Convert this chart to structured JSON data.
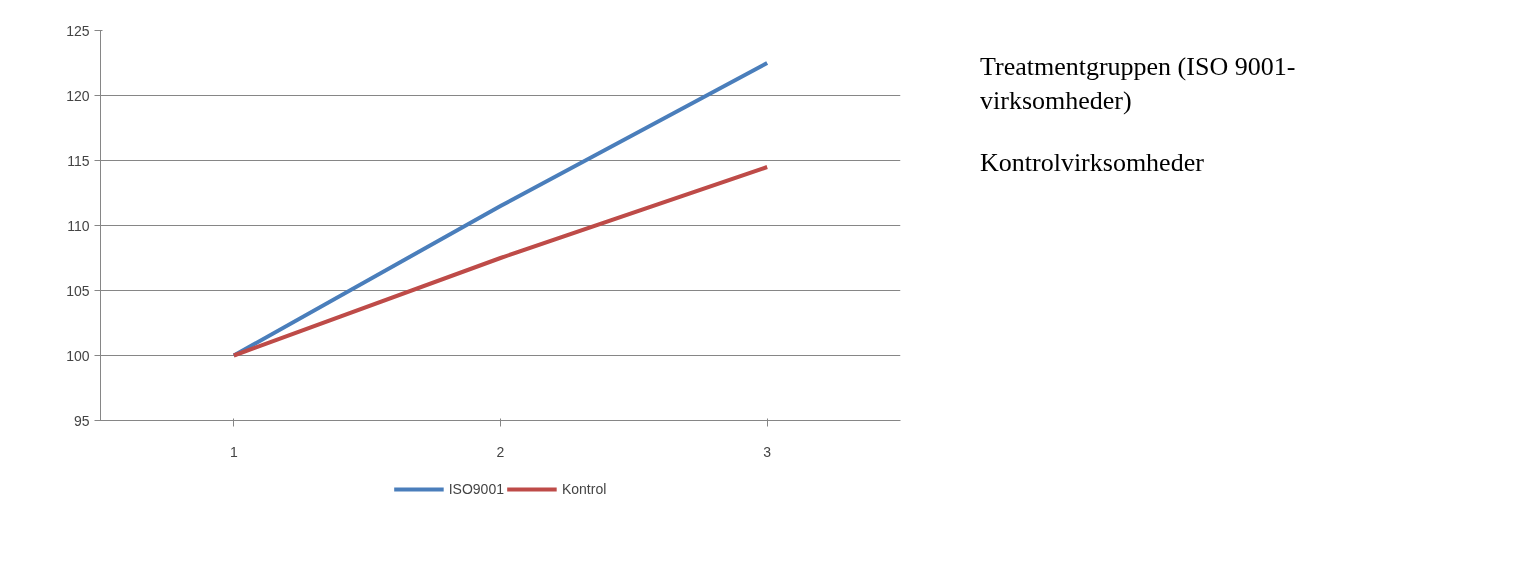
{
  "chart_data": {
    "type": "line",
    "categories": [
      "1",
      "2",
      "3"
    ],
    "series": [
      {
        "name": "ISO9001",
        "color": "#4a7ebb",
        "values": [
          100,
          111.5,
          122.5
        ]
      },
      {
        "name": "Kontrol",
        "color": "#be4b48",
        "values": [
          100,
          107.5,
          114.5
        ]
      }
    ],
    "ylim": [
      95,
      125
    ],
    "yticks": [
      95,
      100,
      105,
      110,
      115,
      120,
      125
    ],
    "grid": "y",
    "legend": "bottom",
    "marker": "none",
    "line_style": "solid",
    "annotations": [
      "Treatmentgruppen (ISO 9001-virksomheder)",
      "Kontrolvirksomheder"
    ]
  }
}
